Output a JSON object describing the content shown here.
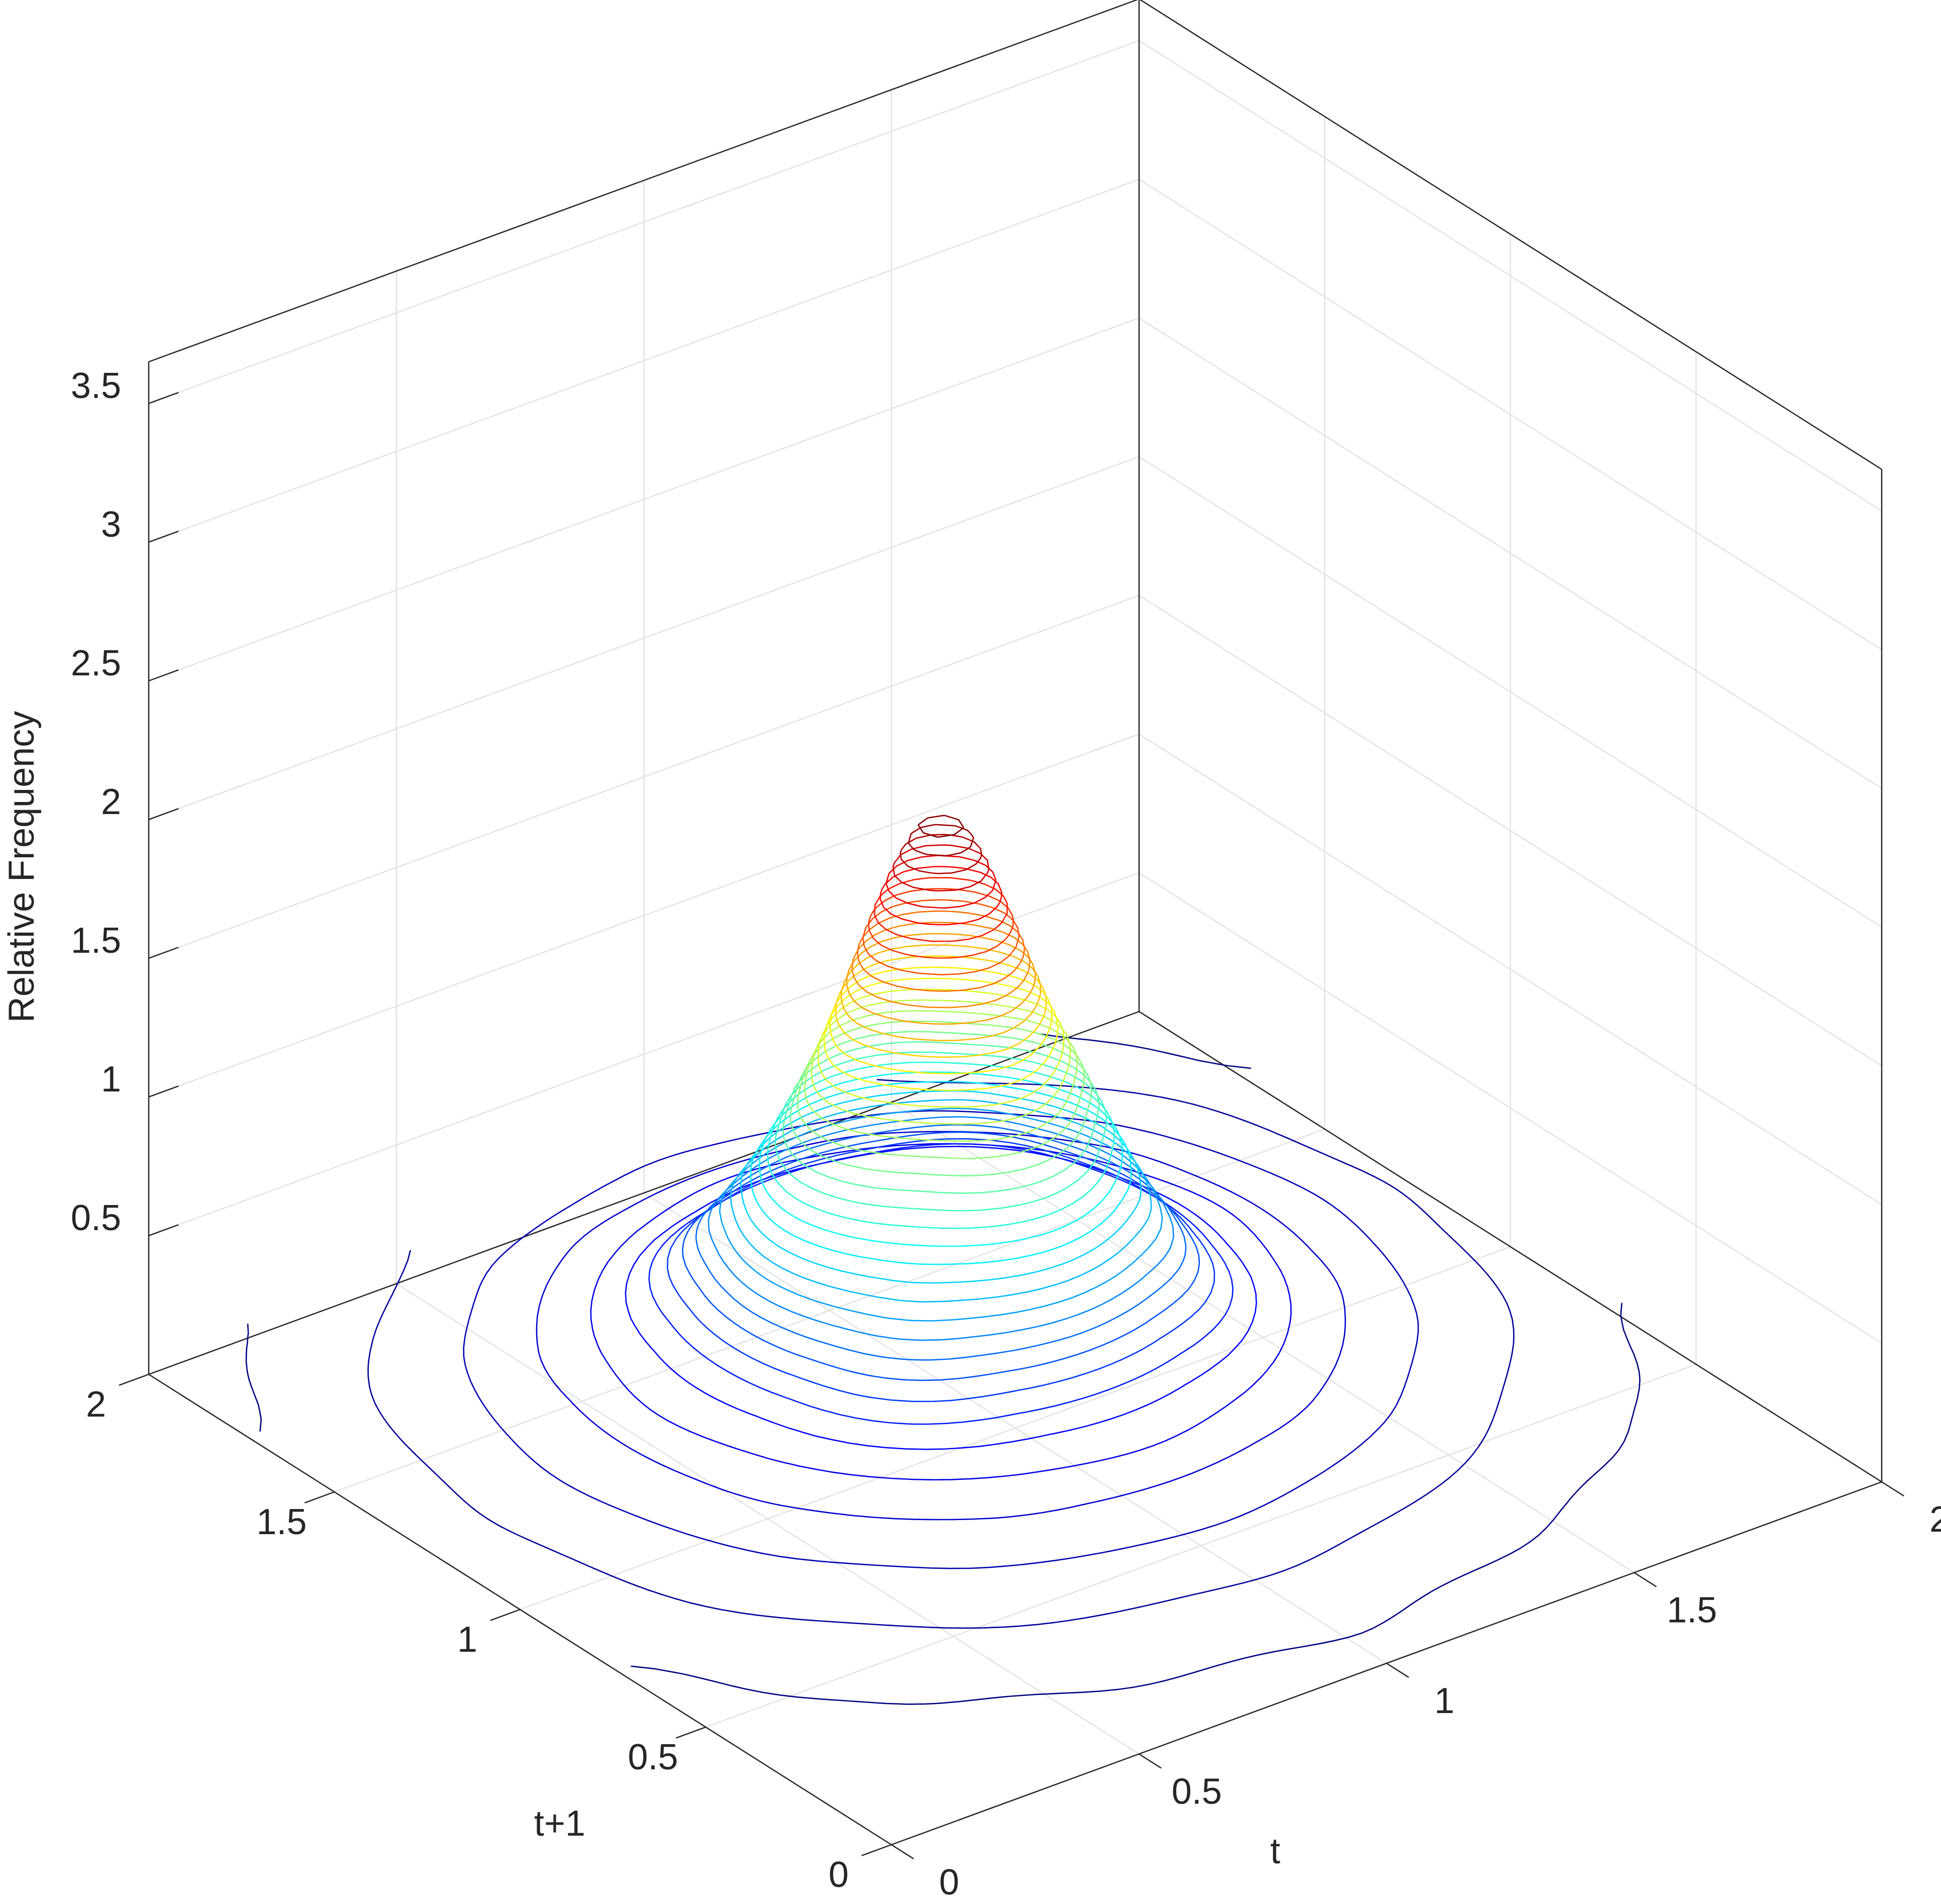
{
  "chart_data": {
    "type": "contour3",
    "x_label": "t",
    "y_label": "t+1",
    "z_label": "Relative Frequency",
    "x": [
      0,
      0.2,
      0.4,
      0.6,
      0.8,
      1,
      1.2,
      1.4,
      1.6,
      1.8,
      2
    ],
    "y": [
      0,
      0.2,
      0.4,
      0.6,
      0.8,
      1,
      1.2,
      1.4,
      1.6,
      1.8,
      2
    ],
    "z": [
      [
        0.01,
        0.01,
        0.02,
        0.03,
        0.03,
        0.04,
        0.03,
        0.03,
        0.02,
        0.01,
        0.01
      ],
      [
        0.01,
        0.03,
        0.04,
        0.06,
        0.07,
        0.08,
        0.07,
        0.06,
        0.04,
        0.03,
        0.01
      ],
      [
        0.03,
        0.05,
        0.08,
        0.11,
        0.13,
        0.14,
        0.13,
        0.11,
        0.08,
        0.05,
        0.03
      ],
      [
        0.04,
        0.08,
        0.12,
        0.17,
        0.21,
        0.23,
        0.21,
        0.17,
        0.12,
        0.08,
        0.04
      ],
      [
        0.06,
        0.11,
        0.17,
        0.25,
        0.37,
        0.45,
        0.37,
        0.25,
        0.17,
        0.11,
        0.06
      ],
      [
        0.07,
        0.13,
        0.21,
        0.37,
        0.83,
        1.26,
        0.83,
        0.37,
        0.21,
        0.13,
        0.07
      ],
      [
        0.08,
        0.14,
        0.23,
        0.45,
        1.26,
        2.05,
        1.26,
        0.45,
        0.23,
        0.14,
        0.08
      ],
      [
        0.07,
        0.13,
        0.21,
        0.37,
        0.83,
        1.26,
        0.83,
        0.37,
        0.21,
        0.13,
        0.07
      ],
      [
        0.06,
        0.11,
        0.17,
        0.25,
        0.37,
        0.45,
        0.37,
        0.25,
        0.17,
        0.11,
        0.06
      ],
      [
        0.04,
        0.08,
        0.12,
        0.17,
        0.21,
        0.23,
        0.21,
        0.17,
        0.12,
        0.08,
        0.04
      ],
      [
        0.03,
        0.05,
        0.08,
        0.11,
        0.13,
        0.14,
        0.13,
        0.11,
        0.08,
        0.05,
        0.03
      ]
    ],
    "levels": [
      0.05,
      0.1,
      0.15,
      0.2,
      0.25,
      0.3,
      0.35,
      0.4,
      0.45,
      0.5,
      0.55,
      0.6,
      0.65,
      0.7,
      0.75,
      0.8,
      0.85,
      0.9,
      0.95,
      1,
      1.05,
      1.1,
      1.15,
      1.2,
      1.25,
      1.3,
      1.35,
      1.4,
      1.45,
      1.5,
      1.55,
      1.6,
      1.65,
      1.7,
      1.75,
      1.8,
      1.85,
      1.9,
      1.95,
      2
    ],
    "colormap": "jet",
    "xlim": [
      0,
      2
    ],
    "ylim": [
      0,
      2
    ],
    "zlim": [
      0,
      3.65
    ],
    "xticks": [
      0,
      0.5,
      1,
      1.5,
      2
    ],
    "yticks": [
      0,
      0.5,
      1,
      1.5,
      2
    ],
    "zticks": [
      0.5,
      1,
      1.5,
      2,
      2.5,
      3,
      3.5
    ],
    "grid": true
  }
}
